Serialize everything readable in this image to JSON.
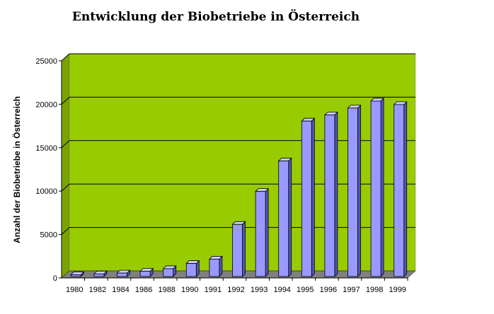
{
  "chart_data": {
    "type": "bar",
    "title": "Entwicklung der Biobetriebe in Österreich",
    "xlabel": "",
    "ylabel": "Anzahl der Biobetriebe in Österreich",
    "categories": [
      "1980",
      "1982",
      "1984",
      "1986",
      "1988",
      "1990",
      "1991",
      "1992",
      "1993",
      "1994",
      "1995",
      "1996",
      "1997",
      "1998",
      "1999"
    ],
    "values": [
      200,
      300,
      400,
      600,
      900,
      1500,
      2000,
      6000,
      9800,
      13300,
      17900,
      18600,
      19400,
      20200,
      19800
    ],
    "ylim": [
      0,
      25000
    ],
    "yticks": [
      "0",
      "5000",
      "10000",
      "15000",
      "20000",
      "25000"
    ],
    "grid": true,
    "legend": "none",
    "colors": {
      "plot_background": "#99cc00",
      "floor": "#808080",
      "bar_front": "#9999ff",
      "bar_side": "#5555bb",
      "bar_top": "#ccccff",
      "gridline": "#000000"
    }
  }
}
